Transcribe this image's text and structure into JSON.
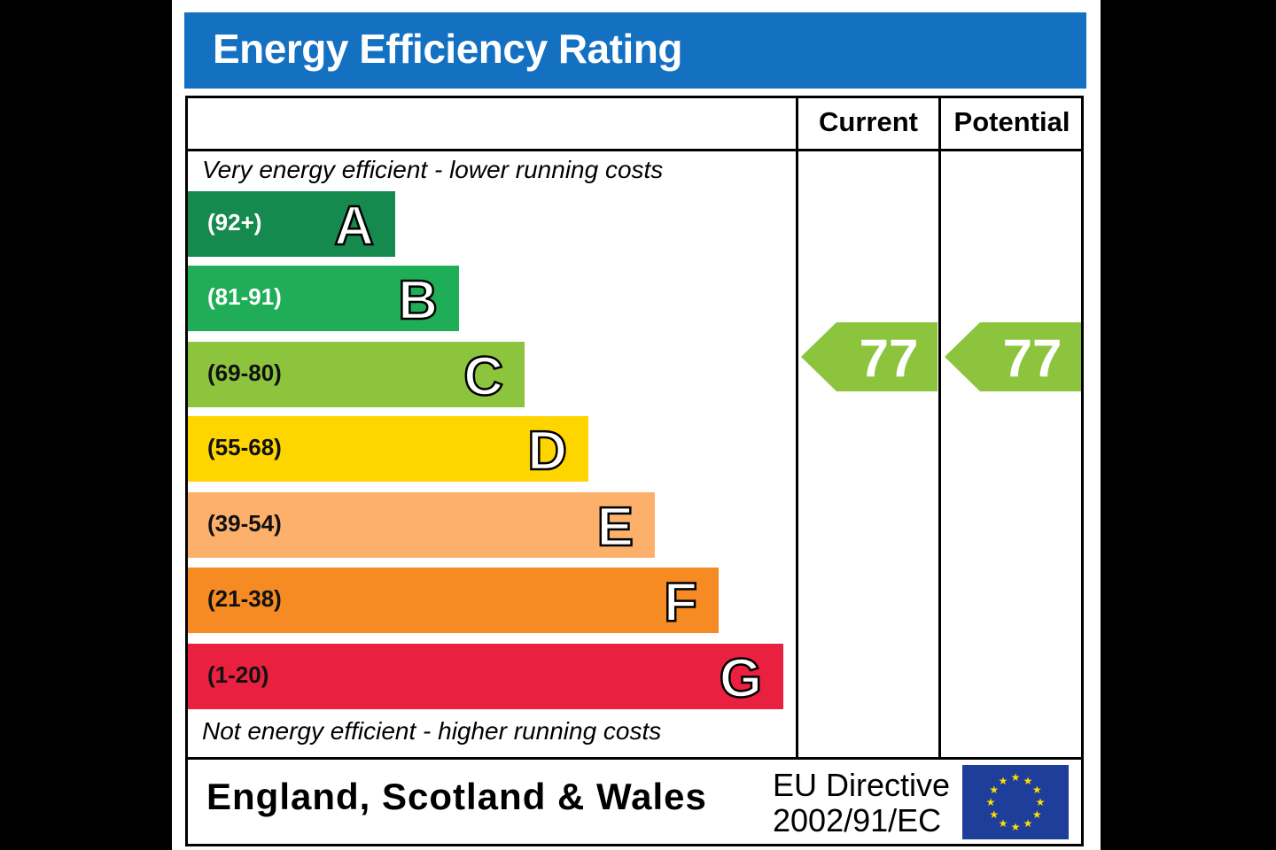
{
  "title": "Energy Efficiency Rating",
  "columns": {
    "current": "Current",
    "potential": "Potential"
  },
  "top_caption": "Very energy efficient - lower running costs",
  "bottom_caption": "Not energy efficient - higher running costs",
  "bands": [
    {
      "letter": "A",
      "range": "(92+)",
      "color": "#168a4e"
    },
    {
      "letter": "B",
      "range": "(81-91)",
      "color": "#1fad57"
    },
    {
      "letter": "C",
      "range": "(69-80)",
      "color": "#8cc43d"
    },
    {
      "letter": "D",
      "range": "(55-68)",
      "color": "#ffd500"
    },
    {
      "letter": "E",
      "range": "(39-54)",
      "color": "#fcb06c"
    },
    {
      "letter": "F",
      "range": "(21-38)",
      "color": "#f68a23"
    },
    {
      "letter": "G",
      "range": "(1-20)",
      "color": "#e9203f"
    }
  ],
  "ratings": {
    "current": "77",
    "potential": "77",
    "arrow_color": "#8cc43d"
  },
  "footer": {
    "region": "England, Scotland & Wales",
    "directive_line1": "EU Directive",
    "directive_line2": "2002/91/EC",
    "flag_icon": "eu-flag-icon"
  }
}
